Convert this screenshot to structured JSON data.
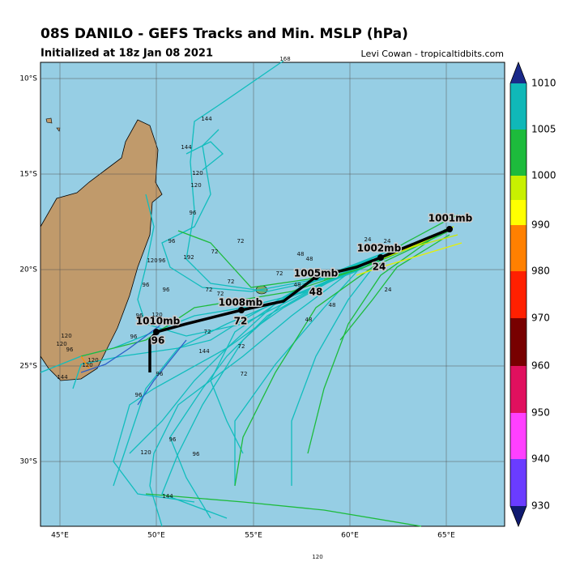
{
  "header": {
    "title": "08S DANILO - GEFS Tracks and Min. MSLP (hPa)",
    "subtitle": "Initialized at 18z Jan 08 2021",
    "credit": "Levi Cowan - tropicaltidbits.com"
  },
  "map": {
    "lon_labels": [
      "45°E",
      "50°E",
      "55°E",
      "60°E",
      "65°E"
    ],
    "lat_labels": [
      "10°S",
      "15°S",
      "20°S",
      "25°S",
      "30°S"
    ],
    "track_labels": [
      "1001mb",
      "1002mb",
      "24",
      "1005mb",
      "48",
      "1008mb",
      "72",
      "1010mb",
      "96"
    ],
    "hour_labels": [
      "168",
      "144",
      "144",
      "120",
      "120",
      "96",
      "96",
      "72",
      "72",
      "192",
      "120",
      "96",
      "96",
      "96",
      "72",
      "72",
      "72",
      "72",
      "48",
      "48",
      "48",
      "48",
      "48",
      "24",
      "24",
      "24",
      "120",
      "120",
      "96",
      "120",
      "120",
      "144",
      "96",
      "96",
      "96",
      "72",
      "72",
      "72",
      "144",
      "120",
      "96",
      "96",
      "96",
      "120",
      "144",
      "120"
    ]
  },
  "colorbar": {
    "labels": [
      1010,
      1005,
      1000,
      990,
      980,
      970,
      960,
      950,
      940,
      930
    ]
  }
}
